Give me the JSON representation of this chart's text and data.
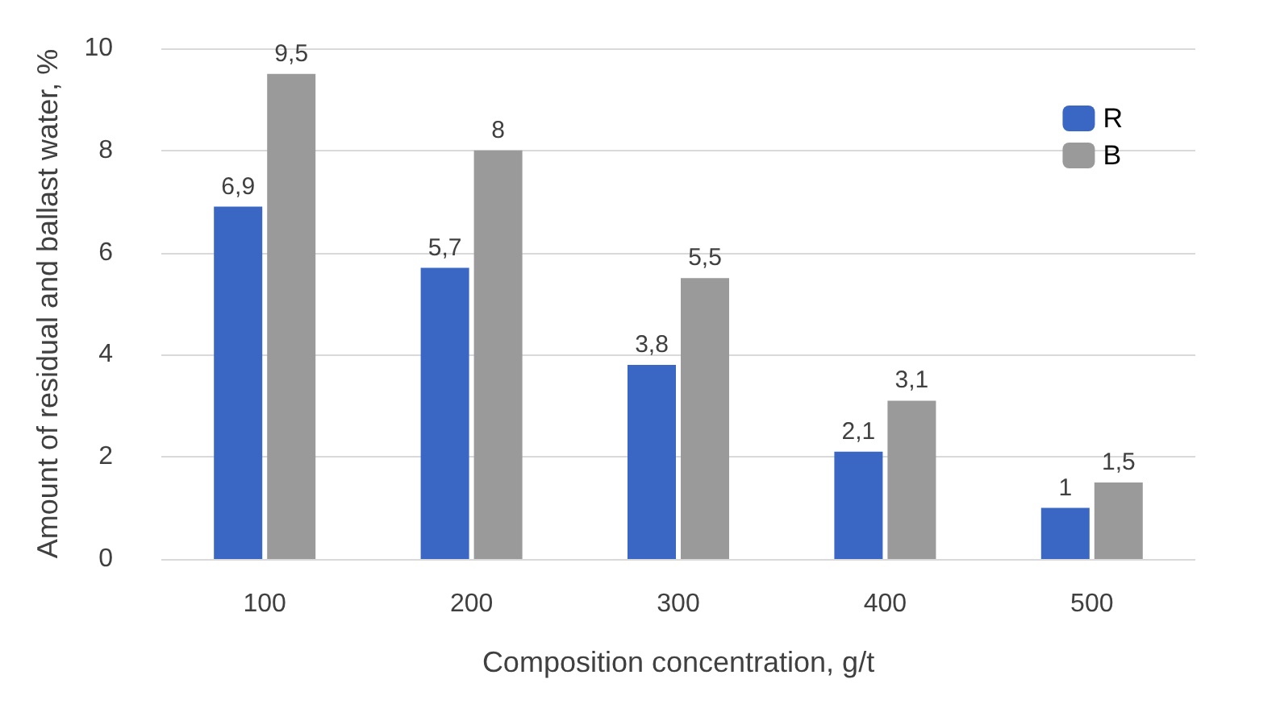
{
  "chart_data": {
    "type": "bar",
    "xlabel": "Composition concentration, g/t",
    "ylabel": "Amount of residual and ballast water, %",
    "categories": [
      "100",
      "200",
      "300",
      "400",
      "500"
    ],
    "series": [
      {
        "name": "R",
        "color": "#3a66c4",
        "values": [
          6.9,
          5.7,
          3.8,
          2.1,
          1
        ],
        "value_labels": [
          "6,9",
          "5,7",
          "3,8",
          "2,1",
          "1"
        ]
      },
      {
        "name": "B",
        "color": "#9a9a9a",
        "values": [
          9.5,
          8,
          5.5,
          3.1,
          1.5
        ],
        "value_labels": [
          "9,5",
          "8",
          "5,5",
          "3,1",
          "1,5"
        ]
      }
    ],
    "ylim": [
      0,
      10
    ],
    "yticks": [
      0,
      2,
      4,
      6,
      8,
      10
    ],
    "grid": "y",
    "legend": "top right"
  }
}
